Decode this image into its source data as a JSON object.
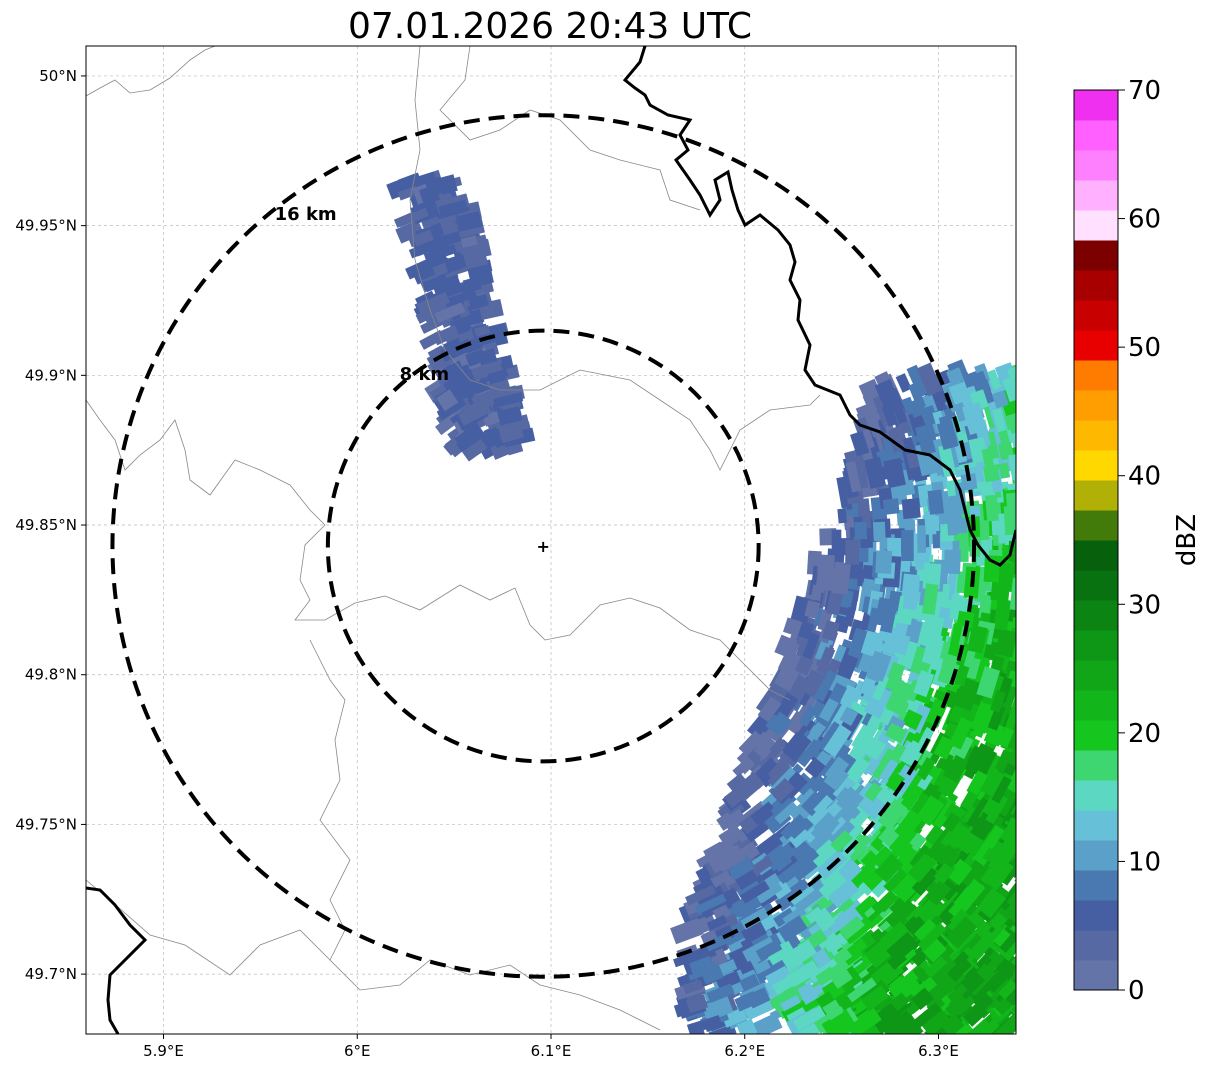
{
  "chart_data": {
    "type": "heatmap",
    "title": "07.01.2026 20:43 UTC",
    "x_axis": {
      "range": [
        5.86,
        6.34
      ],
      "ticks": [
        5.9,
        6.0,
        6.1,
        6.2,
        6.3
      ],
      "tick_labels": [
        "5.9°E",
        "6°E",
        "6.1°E",
        "6.2°E",
        "6.3°E"
      ]
    },
    "y_axis": {
      "range": [
        49.68,
        50.01
      ],
      "ticks": [
        49.7,
        49.75,
        49.8,
        49.85,
        49.9,
        49.95,
        50.0
      ],
      "tick_labels": [
        "49.7°N",
        "49.75°N",
        "49.8°N",
        "49.85°N",
        "49.9°N",
        "49.95°N",
        "50°N"
      ]
    },
    "grid": true,
    "radar_center": {
      "lon": 6.096,
      "lat": 49.843
    },
    "range_rings": [
      {
        "radius_km": 8,
        "label": "8 km"
      },
      {
        "radius_km": 16,
        "label": "16 km"
      }
    ],
    "colorbar": {
      "label": "dBZ",
      "vmin": 0,
      "vmax": 70,
      "ticks": [
        0,
        10,
        20,
        30,
        40,
        50,
        60,
        70
      ],
      "tick_labels": [
        "0",
        "10",
        "20",
        "30",
        "40",
        "50",
        "60",
        "70"
      ],
      "colors": [
        "#6574a8",
        "#5769a3",
        "#465fa2",
        "#4a78b1",
        "#5aa0c8",
        "#66c0d8",
        "#5cd8c2",
        "#3ed670",
        "#14c61e",
        "#12b61a",
        "#10a618",
        "#0e9616",
        "#0c8414",
        "#087210",
        "#06600c",
        "#437b0a",
        "#b0b006",
        "#ffd800",
        "#ffb800",
        "#ff9e00",
        "#ff7c00",
        "#e80000",
        "#c80000",
        "#a80000",
        "#7c0000",
        "#ffe0ff",
        "#ffb0ff",
        "#ff80ff",
        "#ff60ff",
        "#f030f0"
      ]
    },
    "echoes": [
      {
        "region": "north-cell",
        "lon": [
          6.03,
          6.09
        ],
        "lat": [
          49.87,
          49.97
        ],
        "dbz_range": [
          2,
          8
        ]
      },
      {
        "region": "south-east-band",
        "lon": [
          6.17,
          6.34
        ],
        "lat": [
          49.68,
          49.9
        ],
        "dbz_range": [
          2,
          28
        ]
      }
    ]
  }
}
